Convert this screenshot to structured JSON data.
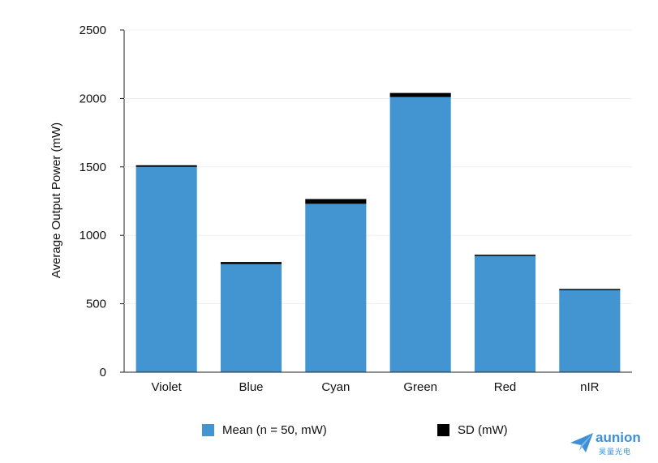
{
  "chart_data": {
    "type": "bar",
    "title": "",
    "xlabel": "",
    "ylabel": "Average Output Power (mW)",
    "ylim": [
      0,
      2500
    ],
    "yticks": [
      0,
      500,
      1000,
      1500,
      2000,
      2500
    ],
    "categories": [
      "Violet",
      "Blue",
      "Cyan",
      "Green",
      "Red",
      "nIR"
    ],
    "stacked": true,
    "grid": false,
    "legend_position": "bottom",
    "series": [
      {
        "name": "Mean (n = 50, mW)",
        "color": "#4395d1",
        "values": [
          1500,
          790,
          1230,
          2010,
          850,
          600
        ]
      },
      {
        "name": "SD (mW)",
        "color": "#000000",
        "values": [
          12,
          15,
          35,
          30,
          8,
          8
        ]
      }
    ]
  },
  "watermark": {
    "brand": "aunion",
    "sub": "昊量光电"
  }
}
